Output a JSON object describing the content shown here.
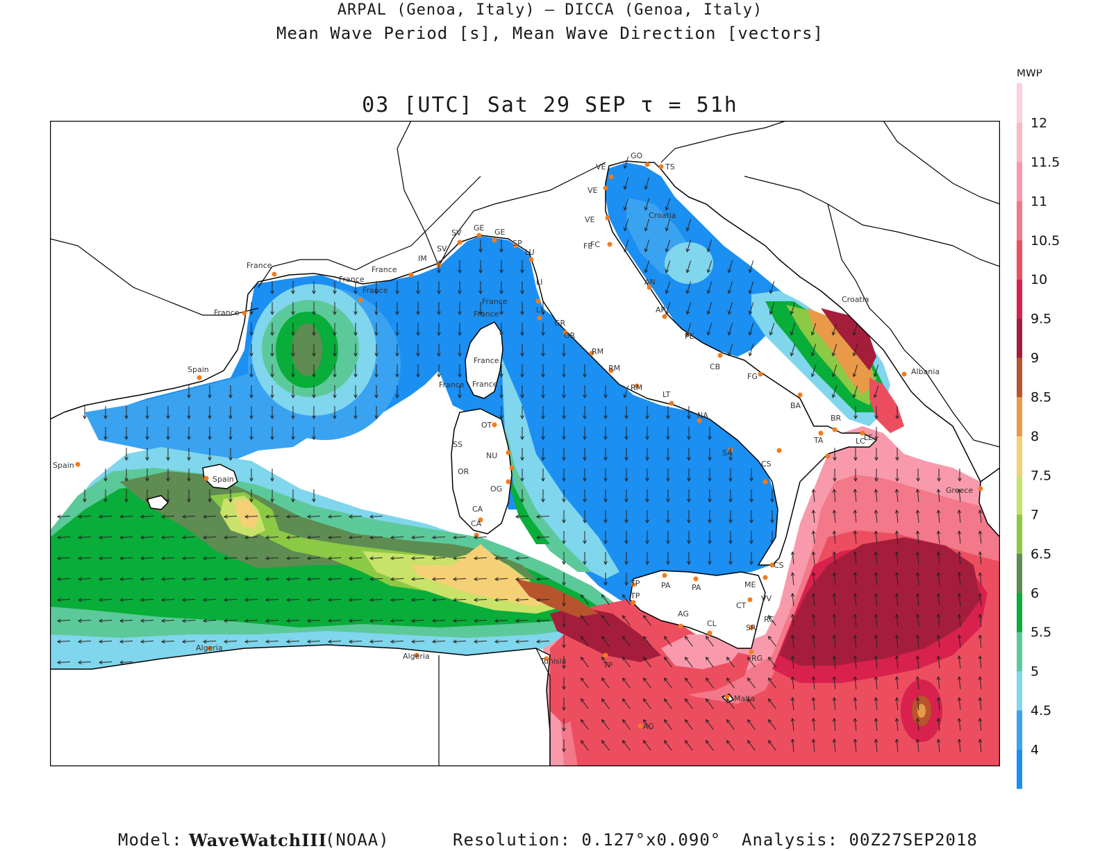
{
  "header": {
    "line1": "ARPAL (Genoa, Italy)  —  DICCA (Genoa, Italy)",
    "line2": "Mean Wave Period [s], Mean Wave Direction [vectors]",
    "time": "03 [UTC] Sat 29 SEP  τ = 51h"
  },
  "colorbar": {
    "title": "MWP",
    "ticks": [
      "4",
      "4.5",
      "5",
      "5.5",
      "6",
      "6.5",
      "7",
      "7.5",
      "8",
      "8.5",
      "9",
      "9.5",
      "10",
      "10.5",
      "11",
      "11.5",
      "12"
    ],
    "colors": [
      "#1b8ff2",
      "#3aa3f1",
      "#80d6ec",
      "#5cc99a",
      "#09ad3a",
      "#5e8c52",
      "#8cc944",
      "#c9e269",
      "#f6d077",
      "#e89a48",
      "#b8542d",
      "#a41e3b",
      "#d8214c",
      "#ec4e60",
      "#f3788a",
      "#f89aac",
      "#fbb8c6",
      "#fcd0dc"
    ]
  },
  "map": {
    "palette": {
      "sea_blue": "#1b8ff2",
      "sea_blue2": "#3aa3f1",
      "sea_cyan": "#80d6ec",
      "sea_mint": "#5cc99a",
      "sea_green": "#09ad3a",
      "sea_olive": "#5e8c52",
      "sea_lime": "#8cc944",
      "sea_yellow": "#c9e269",
      "sea_peach": "#f6d077",
      "sea_orange": "#e89a48",
      "sea_brown": "#b8542d",
      "sea_maroon": "#a41e3b",
      "sea_crimson": "#d8214c",
      "sea_red": "#ec4e60",
      "sea_pink": "#f3788a",
      "sea_lightpink": "#f89aac",
      "land": "#ffffff",
      "coast": "#000000",
      "station": "#f07c1e"
    },
    "place_labels": [
      "VE",
      "GO",
      "TS",
      "VE",
      "VE",
      "FE",
      "FC",
      "Croatia",
      "AN",
      "AP",
      "PE",
      "CB",
      "FG",
      "BA",
      "BR",
      "LE",
      "TA",
      "CS",
      "CS",
      "VV",
      "RC",
      "ME",
      "CT",
      "SR",
      "RG",
      "AG",
      "CL",
      "TP",
      "TP",
      "PA",
      "PA",
      "LT",
      "NA",
      "SA",
      "RM",
      "RM",
      "RM",
      "GR",
      "GR",
      "LI",
      "LI",
      "LU",
      "SP",
      "GE",
      "GE",
      "SV",
      "SV",
      "IM",
      "France",
      "France",
      "France",
      "France",
      "France",
      "France",
      "France",
      "France",
      "France",
      "France",
      "Spain",
      "Spain",
      "Spain",
      "OT",
      "SS",
      "NU",
      "OR",
      "OG",
      "CA",
      "CA",
      "Tunisia",
      "TP",
      "Malta",
      "AG",
      "Algeria",
      "Algeria",
      "Croatia",
      "Albania",
      "Greece",
      "LC"
    ]
  },
  "footer": {
    "model_label": "Model:",
    "model_name": "WaveWatchIII",
    "model_source": "(NOAA)",
    "resolution": "Resolution: 0.127°x0.090°",
    "analysis": "Analysis: 00Z27SEP2018"
  }
}
